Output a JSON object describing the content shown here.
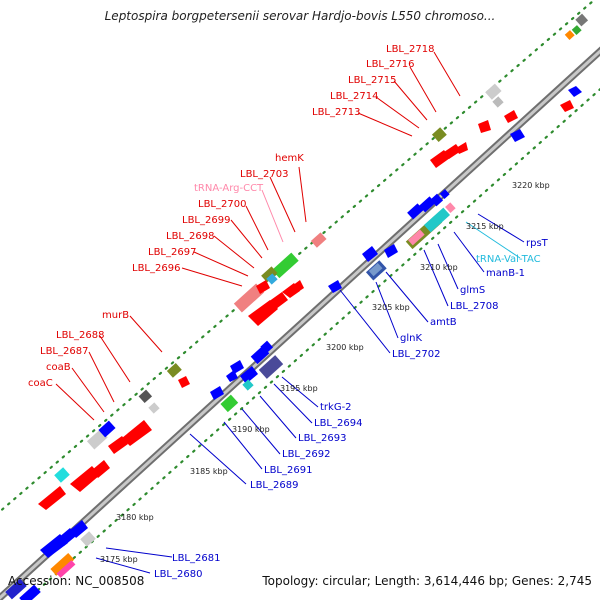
{
  "title": "Leptospira borgpetersenii serovar Hardjo-bovis L550 chromoso...",
  "accession": "Accession: NC_008508",
  "summary": "Topology: circular; Length: 3,614,446 bp; Genes: 2,745",
  "colors": {
    "backbone": "#8c8c8c",
    "forward_label": "#e00000",
    "reverse_label": "#0000cc",
    "trna_pink": "#ff88aa",
    "trna_cyan": "#22bbdd",
    "tick": "#2e8b2e",
    "forward_gene": "#ff0000",
    "reverse_gene": "#0000ff"
  },
  "scale_labels": [
    {
      "text": "3175 kbp",
      "kbp": 3175
    },
    {
      "text": "3180 kbp",
      "kbp": 3180
    },
    {
      "text": "3185 kbp",
      "kbp": 3185
    },
    {
      "text": "3190 kbp",
      "kbp": 3190
    },
    {
      "text": "3195 kbp",
      "kbp": 3195
    },
    {
      "text": "3200 kbp",
      "kbp": 3200
    },
    {
      "text": "3205 kbp",
      "kbp": 3205
    },
    {
      "text": "3210 kbp",
      "kbp": 3210
    },
    {
      "text": "3215 kbp",
      "kbp": 3215
    },
    {
      "text": "3220 kbp",
      "kbp": 3220
    }
  ],
  "forward_labels": [
    "coaC",
    "coaB",
    "LBL_2687",
    "LBL_2688",
    "murB",
    "LBL_2696",
    "LBL_2697",
    "LBL_2698",
    "LBL_2699",
    "LBL_2700",
    "tRNA-Arg-CCT",
    "LBL_2703",
    "hemK",
    "LBL_2713",
    "LBL_2714",
    "LBL_2715",
    "LBL_2716",
    "LBL_2718"
  ],
  "reverse_labels": [
    "LBL_2680",
    "LBL_2681",
    "LBL_2689",
    "LBL_2691",
    "LBL_2692",
    "LBL_2693",
    "LBL_2694",
    "trkG-2",
    "LBL_2702",
    "glnK",
    "amtB",
    "LBL_2708",
    "glmS",
    "manB-1",
    "tRNA-Val-TAC",
    "rpsT"
  ]
}
